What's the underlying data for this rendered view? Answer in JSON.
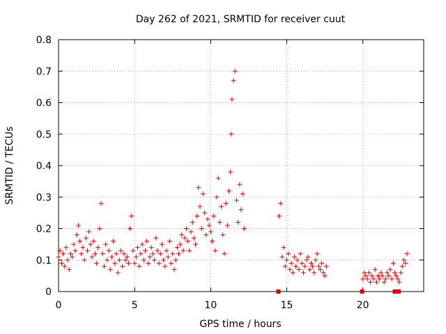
{
  "chart_data": {
    "type": "scatter",
    "title": "Day 262 of 2021, SRMTID for receiver cuut",
    "xlabel": "GPS time / hours",
    "ylabel": "SRMTID / TECUs",
    "xlim": [
      0,
      24
    ],
    "ylim": [
      0,
      0.8
    ],
    "xticks": [
      0,
      5,
      10,
      15,
      20
    ],
    "yticks": [
      0,
      0.1,
      0.2,
      0.3,
      0.4,
      0.5,
      0.6,
      0.7,
      0.8
    ],
    "grid": true,
    "marker": "plus",
    "color": "#e00000",
    "series": [
      {
        "name": "SRMTID",
        "x": [
          0.0,
          0.1,
          0.2,
          0.3,
          0.4,
          0.5,
          0.6,
          0.7,
          0.8,
          0.9,
          1.0,
          1.1,
          1.2,
          1.3,
          1.4,
          1.5,
          1.6,
          1.7,
          1.8,
          1.9,
          2.0,
          2.1,
          2.2,
          2.3,
          2.4,
          2.5,
          2.6,
          2.7,
          2.8,
          2.9,
          3.0,
          3.1,
          3.2,
          3.3,
          3.4,
          3.5,
          3.6,
          3.7,
          3.8,
          3.9,
          4.0,
          4.1,
          4.2,
          4.3,
          4.4,
          4.5,
          4.6,
          4.7,
          4.8,
          4.9,
          5.0,
          5.1,
          5.2,
          5.3,
          5.4,
          5.5,
          5.6,
          5.7,
          5.8,
          5.9,
          6.0,
          6.1,
          6.2,
          6.3,
          6.4,
          6.5,
          6.6,
          6.7,
          6.8,
          6.9,
          7.0,
          7.1,
          7.2,
          7.3,
          7.4,
          7.5,
          7.6,
          7.7,
          7.8,
          7.9,
          8.0,
          8.1,
          8.2,
          8.3,
          8.4,
          8.5,
          8.6,
          8.7,
          8.8,
          8.9,
          9.0,
          9.1,
          9.2,
          9.3,
          9.4,
          9.5,
          9.6,
          9.7,
          9.8,
          9.9,
          10.0,
          10.1,
          10.2,
          10.3,
          10.4,
          10.5,
          10.6,
          10.7,
          10.8,
          10.9,
          11.0,
          11.1,
          11.2,
          11.3,
          11.35,
          11.4,
          11.5,
          11.6,
          11.7,
          11.8,
          11.9,
          12.0,
          12.1,
          12.2,
          14.5,
          14.6,
          14.7,
          14.8,
          14.9,
          15.0,
          15.1,
          15.2,
          15.3,
          15.4,
          15.5,
          15.6,
          15.7,
          15.8,
          15.9,
          16.0,
          16.1,
          16.2,
          16.3,
          16.4,
          16.5,
          16.6,
          16.7,
          16.8,
          16.9,
          17.0,
          17.1,
          17.2,
          17.3,
          17.4,
          17.5,
          17.6,
          20.0,
          20.1,
          20.2,
          20.3,
          20.4,
          20.5,
          20.6,
          20.7,
          20.8,
          20.9,
          21.0,
          21.1,
          21.2,
          21.3,
          21.4,
          21.5,
          21.6,
          21.7,
          21.8,
          21.9,
          22.0,
          22.1,
          22.2,
          22.3,
          22.4,
          22.5,
          22.6,
          22.7,
          22.8,
          22.9,
          14.45,
          19.95,
          22.1,
          22.35
        ],
        "y": [
          0.11,
          0.13,
          0.09,
          0.12,
          0.08,
          0.14,
          0.1,
          0.07,
          0.12,
          0.11,
          0.15,
          0.13,
          0.18,
          0.21,
          0.16,
          0.12,
          0.14,
          0.1,
          0.17,
          0.13,
          0.19,
          0.15,
          0.11,
          0.16,
          0.12,
          0.09,
          0.14,
          0.2,
          0.28,
          0.12,
          0.08,
          0.15,
          0.1,
          0.13,
          0.07,
          0.11,
          0.16,
          0.09,
          0.12,
          0.06,
          0.1,
          0.13,
          0.08,
          0.12,
          0.1,
          0.11,
          0.09,
          0.2,
          0.24,
          0.13,
          0.09,
          0.11,
          0.14,
          0.08,
          0.12,
          0.15,
          0.1,
          0.13,
          0.16,
          0.09,
          0.11,
          0.14,
          0.12,
          0.1,
          0.17,
          0.13,
          0.09,
          0.12,
          0.15,
          0.1,
          0.08,
          0.13,
          0.11,
          0.16,
          0.09,
          0.12,
          0.07,
          0.1,
          0.14,
          0.12,
          0.15,
          0.18,
          0.13,
          0.17,
          0.2,
          0.16,
          0.13,
          0.19,
          0.22,
          0.17,
          0.15,
          0.24,
          0.33,
          0.27,
          0.2,
          0.31,
          0.25,
          0.18,
          0.23,
          0.21,
          0.19,
          0.16,
          0.24,
          0.13,
          0.3,
          0.36,
          0.22,
          0.27,
          0.18,
          0.12,
          0.28,
          0.21,
          0.32,
          0.38,
          0.5,
          0.61,
          0.67,
          0.7,
          0.29,
          0.22,
          0.34,
          0.26,
          0.31,
          0.2,
          0.24,
          0.28,
          0.11,
          0.14,
          0.08,
          0.1,
          0.12,
          0.07,
          0.09,
          0.06,
          0.11,
          0.08,
          0.1,
          0.07,
          0.12,
          0.09,
          0.06,
          0.08,
          0.1,
          0.11,
          0.07,
          0.09,
          0.08,
          0.06,
          0.1,
          0.12,
          0.08,
          0.07,
          0.09,
          0.06,
          0.05,
          0.08,
          0.04,
          0.06,
          0.05,
          0.04,
          0.06,
          0.03,
          0.05,
          0.04,
          0.07,
          0.03,
          0.05,
          0.04,
          0.06,
          0.05,
          0.03,
          0.04,
          0.06,
          0.05,
          0.07,
          0.04,
          0.09,
          0.06,
          0.05,
          0.04,
          0.03,
          0.06,
          0.08,
          0.1,
          0.09,
          0.12,
          0.0,
          0.0,
          0.0,
          0.0
        ]
      }
    ]
  }
}
